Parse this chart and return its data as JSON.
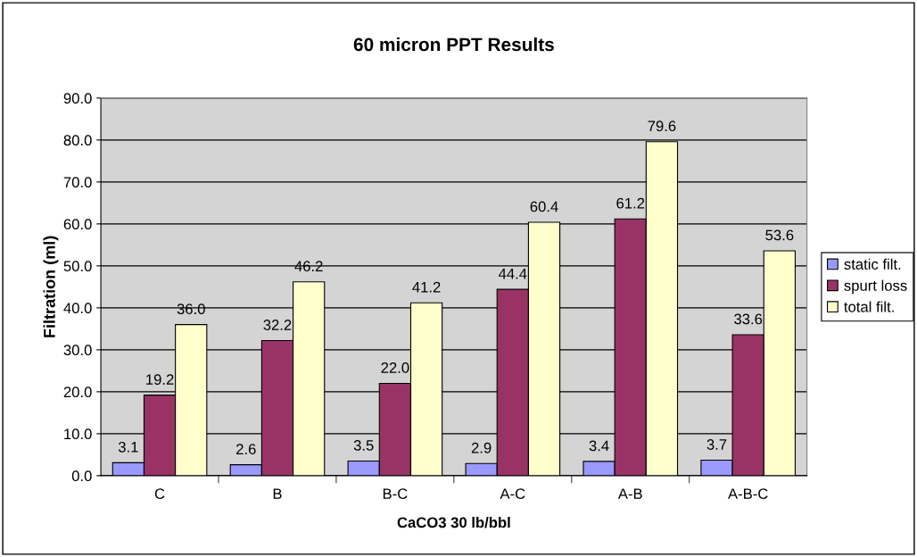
{
  "chart_data": {
    "type": "bar",
    "title": "60 micron PPT Results",
    "xlabel": "CaCO3 30 lb/bbl",
    "ylabel": "Filtration (ml)",
    "categories": [
      "C",
      "B",
      "B-C",
      "A-C",
      "A-B",
      "A-B-C"
    ],
    "series": [
      {
        "name": "static filt.",
        "color": "#9999ff",
        "values": [
          3.1,
          2.6,
          3.5,
          2.9,
          3.4,
          3.7
        ],
        "value_labels": [
          "3.1",
          "2.6",
          "3.5",
          "2.9",
          "3.4",
          "3.7"
        ]
      },
      {
        "name": "spurt loss",
        "color": "#993366",
        "values": [
          19.2,
          32.2,
          22.0,
          44.4,
          61.2,
          33.6
        ],
        "value_labels": [
          "19.2",
          "32.2",
          "22.0",
          "44.4",
          "61.2",
          "33.6"
        ]
      },
      {
        "name": "total filt.",
        "color": "#ffffcc",
        "values": [
          36.0,
          46.2,
          41.2,
          60.4,
          79.6,
          53.6
        ],
        "value_labels": [
          "36.0",
          "46.2",
          "41.2",
          "60.4",
          "79.6",
          "53.6"
        ]
      }
    ],
    "ylim": [
      0,
      90
    ],
    "yticks": [
      {
        "value": 0,
        "label": "0.0"
      },
      {
        "value": 10,
        "label": "10.0"
      },
      {
        "value": 20,
        "label": "20.0"
      },
      {
        "value": 30,
        "label": "30.0"
      },
      {
        "value": 40,
        "label": "40.0"
      },
      {
        "value": 50,
        "label": "50.0"
      },
      {
        "value": 60,
        "label": "60.0"
      },
      {
        "value": 70,
        "label": "70.0"
      },
      {
        "value": 80,
        "label": "80.0"
      },
      {
        "value": 90,
        "label": "90.0"
      }
    ],
    "grid": "y",
    "legend": "right"
  }
}
